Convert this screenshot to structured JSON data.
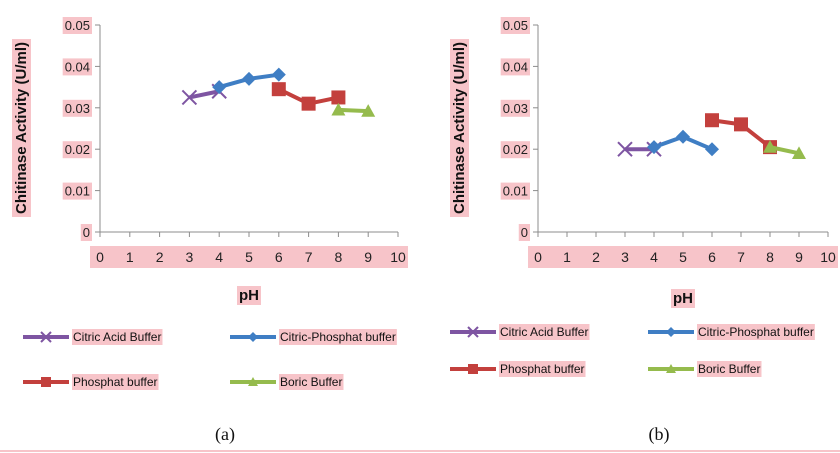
{
  "chart_data": [
    {
      "type": "line",
      "title": "",
      "caption": "(a)",
      "xlabel": "pH",
      "ylabel": "Chitinase Activity (U/ml)",
      "xlim": [
        0,
        10
      ],
      "ylim": [
        0,
        0.05
      ],
      "x_ticks": [
        "0",
        "1",
        "2",
        "3",
        "4",
        "5",
        "6",
        "7",
        "8",
        "9",
        "10"
      ],
      "y_ticks": [
        "0",
        "0.01",
        "0.02",
        "0.03",
        "0.04",
        "0.05"
      ],
      "grid": false,
      "legend": "bottom",
      "series": [
        {
          "name": "Citric Acid Buffer",
          "color": "#7e55a2",
          "marker": "x-mark",
          "x": [
            3,
            4
          ],
          "y": [
            0.0325,
            0.034
          ]
        },
        {
          "name": "Citric-Phosphat buffer",
          "color": "#3f7ec4",
          "marker": "diamond",
          "x": [
            4,
            5,
            6
          ],
          "y": [
            0.035,
            0.037,
            0.038
          ]
        },
        {
          "name": "Phosphat buffer",
          "color": "#c3403d",
          "marker": "square",
          "x": [
            6,
            7,
            8
          ],
          "y": [
            0.0345,
            0.031,
            0.0325
          ]
        },
        {
          "name": "Boric Buffer",
          "color": "#95bb4d",
          "marker": "triangle",
          "x": [
            8,
            9
          ],
          "y": [
            0.0295,
            0.0292
          ]
        }
      ]
    },
    {
      "type": "line",
      "title": "",
      "caption": "(b)",
      "xlabel": "pH",
      "ylabel": "Chitinase Activity (U/ml)",
      "xlim": [
        0,
        10
      ],
      "ylim": [
        0,
        0.05
      ],
      "x_ticks": [
        "0",
        "1",
        "2",
        "3",
        "4",
        "5",
        "6",
        "7",
        "8",
        "9",
        "10"
      ],
      "y_ticks": [
        "0",
        "0.01",
        "0.02",
        "0.03",
        "0.04",
        "0.05"
      ],
      "grid": false,
      "legend": "bottom",
      "series": [
        {
          "name": "Citric Acid Buffer",
          "color": "#7e55a2",
          "marker": "x-mark",
          "x": [
            3,
            4
          ],
          "y": [
            0.02,
            0.02
          ]
        },
        {
          "name": "Citric-Phosphat buffer",
          "color": "#3f7ec4",
          "marker": "diamond",
          "x": [
            4,
            5,
            6
          ],
          "y": [
            0.0205,
            0.023,
            0.02
          ]
        },
        {
          "name": "Phosphat buffer",
          "color": "#c3403d",
          "marker": "square",
          "x": [
            6,
            7,
            8
          ],
          "y": [
            0.027,
            0.026,
            0.0205
          ]
        },
        {
          "name": "Boric Buffer",
          "color": "#95bb4d",
          "marker": "triangle",
          "x": [
            8,
            9
          ],
          "y": [
            0.0205,
            0.019
          ]
        }
      ]
    }
  ],
  "style": {
    "label_highlight_color": "#f7c4c9",
    "axis_color": "#8c8c8c"
  }
}
